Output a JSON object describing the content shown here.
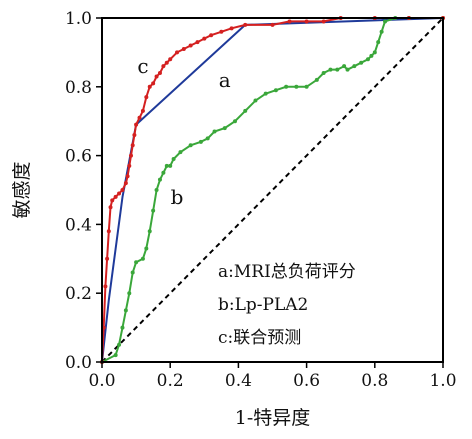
{
  "chart_data": {
    "type": "line",
    "xlabel": "1-特异度",
    "ylabel": "敏感度",
    "xlim": [
      0,
      1
    ],
    "ylim": [
      0,
      1
    ],
    "x_ticks": [
      "0.0",
      "0.2",
      "0.4",
      "0.6",
      "0.8",
      "1.0"
    ],
    "y_ticks": [
      "0.0",
      "0.2",
      "0.4",
      "0.6",
      "0.8",
      "1.0"
    ],
    "grid": false,
    "legend_position": "bottom-right",
    "legend": [
      "a:MRI总负荷评分",
      "b:Lp-PLA2",
      "c:联合预测"
    ],
    "colors": {
      "a": "#1f3a9a",
      "b": "#3aa73a",
      "c": "#d42020",
      "reference": "#000000"
    },
    "series": [
      {
        "key": "a",
        "name": "a",
        "color": "#1f3a9a",
        "x": [
          0,
          0.02,
          0.06,
          0.1,
          0.42,
          1.0
        ],
        "y": [
          0,
          0.18,
          0.48,
          0.69,
          0.98,
          1.0
        ]
      },
      {
        "key": "b",
        "name": "b",
        "color": "#3aa73a",
        "x": [
          0,
          0.04,
          0.05,
          0.06,
          0.07,
          0.08,
          0.09,
          0.1,
          0.12,
          0.13,
          0.14,
          0.15,
          0.16,
          0.17,
          0.18,
          0.19,
          0.2,
          0.21,
          0.23,
          0.26,
          0.29,
          0.31,
          0.33,
          0.36,
          0.39,
          0.42,
          0.45,
          0.48,
          0.51,
          0.54,
          0.57,
          0.6,
          0.63,
          0.65,
          0.67,
          0.69,
          0.71,
          0.72,
          0.74,
          0.76,
          0.78,
          0.79,
          0.8,
          0.81,
          0.82,
          0.83,
          0.86,
          0.9,
          1.0
        ],
        "y": [
          0,
          0.02,
          0.05,
          0.1,
          0.15,
          0.2,
          0.26,
          0.29,
          0.3,
          0.33,
          0.38,
          0.44,
          0.5,
          0.53,
          0.55,
          0.57,
          0.57,
          0.59,
          0.61,
          0.63,
          0.64,
          0.65,
          0.67,
          0.68,
          0.7,
          0.73,
          0.76,
          0.78,
          0.79,
          0.8,
          0.8,
          0.8,
          0.82,
          0.84,
          0.85,
          0.85,
          0.86,
          0.85,
          0.86,
          0.87,
          0.88,
          0.89,
          0.9,
          0.93,
          0.96,
          0.99,
          1.0,
          1.0,
          1.0
        ]
      },
      {
        "key": "c",
        "name": "c",
        "color": "#d42020",
        "x": [
          0,
          0.005,
          0.01,
          0.015,
          0.02,
          0.025,
          0.03,
          0.04,
          0.05,
          0.06,
          0.07,
          0.075,
          0.08,
          0.085,
          0.09,
          0.095,
          0.1,
          0.11,
          0.12,
          0.13,
          0.14,
          0.15,
          0.16,
          0.17,
          0.18,
          0.19,
          0.2,
          0.22,
          0.24,
          0.26,
          0.28,
          0.3,
          0.32,
          0.35,
          0.38,
          0.42,
          0.5,
          0.55,
          0.6,
          0.65,
          0.7,
          0.8,
          0.9,
          1.0
        ],
        "y": [
          0,
          0.1,
          0.22,
          0.3,
          0.38,
          0.45,
          0.47,
          0.48,
          0.49,
          0.5,
          0.52,
          0.54,
          0.57,
          0.6,
          0.63,
          0.66,
          0.69,
          0.71,
          0.73,
          0.77,
          0.8,
          0.81,
          0.83,
          0.84,
          0.86,
          0.87,
          0.88,
          0.9,
          0.91,
          0.92,
          0.93,
          0.94,
          0.95,
          0.96,
          0.97,
          0.98,
          0.98,
          0.99,
          0.99,
          0.99,
          1.0,
          1.0,
          1.0,
          1.0
        ]
      }
    ],
    "reference_line": {
      "x": [
        0,
        1
      ],
      "y": [
        0,
        1
      ],
      "style": "dashed"
    },
    "curve_tags": [
      {
        "text": "c",
        "x": 0.12,
        "y": 0.84
      },
      {
        "text": "a",
        "x": 0.36,
        "y": 0.8
      },
      {
        "text": "b",
        "x": 0.22,
        "y": 0.46
      }
    ]
  }
}
